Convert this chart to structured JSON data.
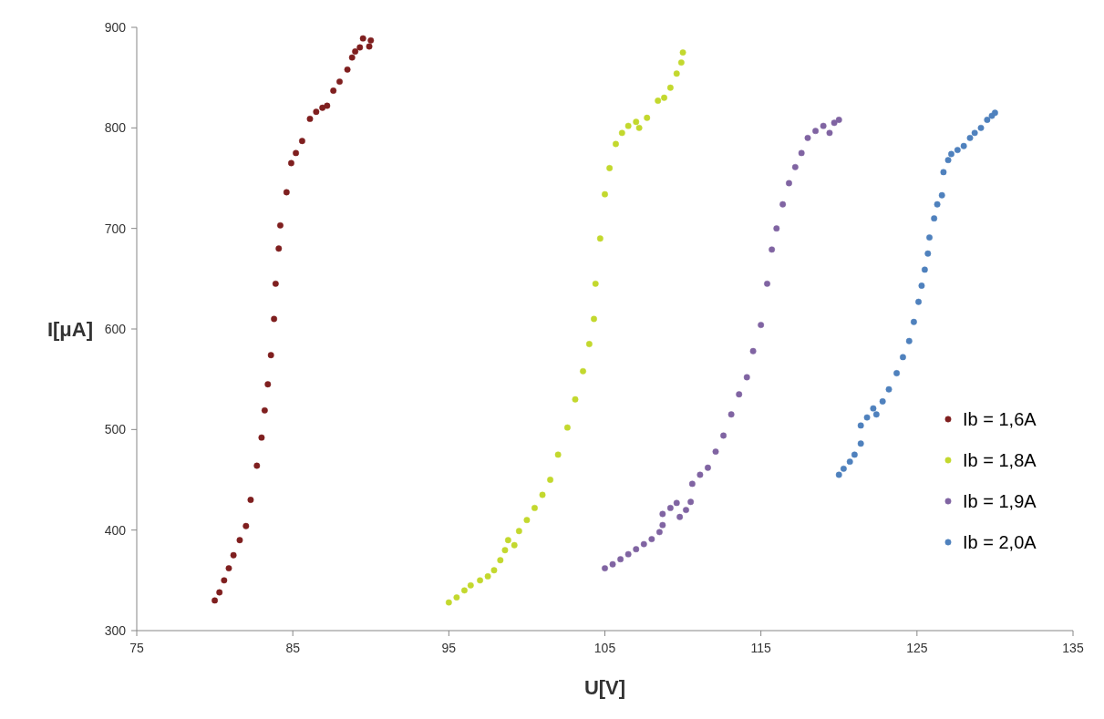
{
  "chart_data": {
    "type": "scatter",
    "xlabel": "U[V]",
    "ylabel": "I[μA]",
    "xlim": [
      75,
      135
    ],
    "xticks": [
      75,
      85,
      95,
      105,
      115,
      125,
      135
    ],
    "ylim": [
      300,
      900
    ],
    "yticks": [
      300,
      400,
      500,
      600,
      700,
      800,
      900
    ],
    "grid": false,
    "legend": "right",
    "marker": "circle",
    "series": [
      {
        "name": "Ib = 1,6A",
        "color": "#7f1f1f",
        "x": [
          80.0,
          80.3,
          80.6,
          80.9,
          81.2,
          81.6,
          82.0,
          82.3,
          82.7,
          83.0,
          83.2,
          83.4,
          83.6,
          83.8,
          83.9,
          84.1,
          84.2,
          84.6,
          84.9,
          85.2,
          85.6,
          86.1,
          86.5,
          86.9,
          87.2,
          87.6,
          88.0,
          88.5,
          88.8,
          89.0,
          89.3,
          89.5,
          89.9,
          90.0
        ],
        "values": [
          330,
          338,
          350,
          362,
          375,
          390,
          404,
          430,
          464,
          492,
          519,
          545,
          574,
          610,
          645,
          680,
          703,
          736,
          765,
          775,
          787,
          809,
          816,
          820,
          822,
          837,
          846,
          858,
          870,
          876,
          880,
          889,
          881,
          887
        ]
      },
      {
        "name": "Ib = 1,8A",
        "color": "#c3d82e",
        "x": [
          95.0,
          95.5,
          96.0,
          96.4,
          97.0,
          97.5,
          97.9,
          98.3,
          98.6,
          98.8,
          99.2,
          99.5,
          100.0,
          100.5,
          101.0,
          101.5,
          102.0,
          102.6,
          103.1,
          103.6,
          104.0,
          104.3,
          104.4,
          104.7,
          105.0,
          105.3,
          105.7,
          106.1,
          106.5,
          107.0,
          107.2,
          107.7,
          108.4,
          108.8,
          109.2,
          109.6,
          109.9,
          110.0
        ],
        "values": [
          328,
          333,
          340,
          345,
          350,
          354,
          360,
          370,
          380,
          390,
          385,
          399,
          410,
          422,
          435,
          450,
          475,
          502,
          530,
          558,
          585,
          610,
          645,
          690,
          734,
          760,
          784,
          795,
          802,
          806,
          800,
          810,
          827,
          830,
          840,
          854,
          865,
          875
        ]
      },
      {
        "name": "Ib = 1,9A",
        "color": "#8064a2",
        "x": [
          105,
          105.5,
          106,
          106.5,
          107,
          107.5,
          108,
          108.5,
          108.7,
          108.7,
          109.2,
          109.6,
          109.8,
          110.2,
          110.5,
          110.6,
          111.1,
          111.6,
          112.1,
          112.6,
          113.1,
          113.6,
          114.1,
          114.5,
          115.0,
          115.4,
          115.7,
          116.0,
          116.4,
          116.8,
          117.2,
          117.6,
          118.0,
          118.5,
          119.0,
          119.4,
          119.7,
          120.0
        ],
        "values": [
          362,
          366,
          371,
          376,
          381,
          386,
          391,
          398,
          405,
          416,
          422,
          427,
          413,
          420,
          428,
          446,
          455,
          462,
          478,
          494,
          515,
          535,
          552,
          578,
          604,
          645,
          679,
          700,
          724,
          745,
          761,
          775,
          790,
          797,
          802,
          795,
          805,
          808
        ]
      },
      {
        "name": "Ib = 2,0A",
        "color": "#4f81bd",
        "x": [
          120.0,
          120.3,
          120.7,
          121.0,
          121.4,
          121.4,
          121.8,
          122.2,
          122.4,
          122.8,
          123.2,
          123.7,
          124.1,
          124.5,
          124.8,
          125.1,
          125.3,
          125.5,
          125.7,
          125.8,
          126.1,
          126.3,
          126.6,
          126.7,
          127.0,
          127.2,
          127.6,
          128.0,
          128.4,
          128.7,
          129.1,
          129.5,
          129.8,
          130.0
        ],
        "values": [
          455,
          461,
          468,
          475,
          486,
          504,
          512,
          521,
          515,
          528,
          540,
          556,
          572,
          588,
          607,
          627,
          643,
          659,
          675,
          691,
          710,
          724,
          733,
          756,
          768,
          774,
          778,
          782,
          790,
          795,
          800,
          808,
          812,
          815
        ]
      }
    ]
  }
}
